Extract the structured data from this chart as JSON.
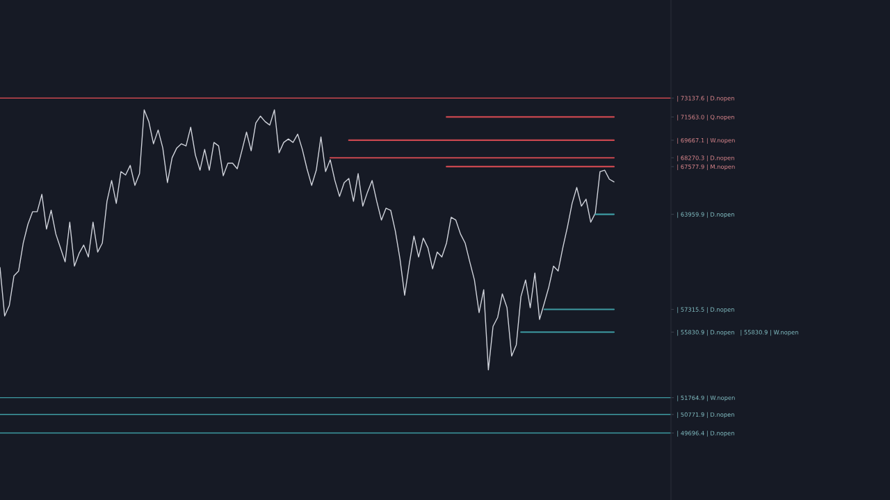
{
  "chart_data": {
    "type": "line",
    "log": "y",
    "ylim": [
      46000,
      81900
    ],
    "tick_labels": "y",
    "marker": "none",
    "line_style": "solid",
    "categories": [
      null,
      null,
      null,
      null,
      null,
      null,
      null,
      null,
      null,
      null,
      null,
      null,
      null,
      null,
      null,
      null,
      null,
      null,
      null,
      null,
      null,
      null,
      null,
      null,
      null,
      null,
      null,
      null,
      null,
      null,
      null,
      null,
      null,
      null,
      null,
      null,
      null,
      null,
      null,
      null,
      null,
      null,
      null,
      null,
      null,
      null,
      null,
      null,
      null,
      null,
      null,
      null,
      null,
      null,
      null,
      null,
      null,
      null,
      null,
      null,
      null,
      null,
      null,
      null,
      null,
      null,
      null,
      null,
      null,
      null,
      null,
      null,
      null,
      null,
      null,
      null,
      null,
      null,
      null,
      null,
      null,
      null,
      null,
      null,
      null,
      null,
      null,
      null,
      null,
      null,
      null,
      null,
      null,
      null,
      null,
      null,
      null,
      null,
      null,
      null,
      null,
      null,
      null,
      null,
      null,
      null,
      null,
      null,
      null,
      null,
      null,
      null,
      null,
      null,
      null,
      null,
      null,
      null,
      null,
      null,
      null,
      null,
      null,
      null,
      null,
      null,
      null,
      null,
      null,
      null,
      null,
      null,
      null
    ],
    "yticks": [
      {
        "value": 73137.6,
        "label": "| 73137.6 | D.nopen"
      },
      {
        "value": 71563.0,
        "label": "| 71563.0 | Q.nopen"
      },
      {
        "value": 69667.1,
        "label": "| 69667.1 | W.nopen"
      },
      {
        "value": 68270.3,
        "label": "| 68270.3 | D.nopen"
      },
      {
        "value": 67577.9,
        "label": "| 67577.9 | M.nopen"
      },
      {
        "value": 63959.9,
        "label": "| 63959.9 | D.nopen"
      },
      {
        "value": 57315.5,
        "label": "| 57315.5 | D.nopen"
      },
      {
        "value": 55830.9,
        "label": "| 55830.9 | D.nopen   | 55830.9 | W.nopen"
      },
      {
        "value": 51764.9,
        "label": "| 51764.9 | W.nopen"
      },
      {
        "value": 50771.9,
        "label": "| 50771.9 | D.nopen"
      },
      {
        "value": 49696.4,
        "label": "| 49696.4 | D.nopen"
      }
    ],
    "ref_lines": [
      {
        "axis": "y",
        "value": 73137.6,
        "color": "#c9474f"
      },
      {
        "axis": "y",
        "value": 51764.9,
        "color": "#3e9ba3"
      },
      {
        "axis": "y",
        "value": 50771.9,
        "color": "#3e9ba3"
      },
      {
        "axis": "y",
        "value": 49696.4,
        "color": "#3e9ba3"
      }
    ],
    "series": [
      {
        "color": "#d1d4dc",
        "values": [
          60155,
          56879,
          57567,
          59578,
          59914,
          61875,
          63227,
          64149,
          64149,
          65451,
          62877,
          64259,
          62526,
          61531,
          60543,
          63380,
          60251,
          61136,
          61728,
          60887,
          63380,
          61231,
          61875,
          64924,
          66504,
          64771,
          67191,
          66928,
          67674,
          66131,
          67031,
          72150,
          71178,
          69378,
          70498,
          69043,
          66343,
          68274,
          69043,
          69378,
          69210,
          70724,
          68494,
          67301,
          68932,
          67301,
          69489,
          69210,
          66870,
          67842,
          67842,
          67411,
          68823,
          70323,
          68823,
          71062,
          71630,
          71178,
          70893,
          72150,
          68661,
          69489,
          69766,
          69489,
          70160,
          68932,
          67411,
          66131,
          67301,
          69933,
          67191,
          68113,
          66504,
          65290,
          66343,
          66658,
          64924,
          67031,
          64566,
          65605,
          66504,
          64924,
          63535,
          64412,
          64259,
          62723,
          60741,
          58262,
          60397,
          62372,
          60887,
          62226,
          61531,
          60060,
          61231,
          60887,
          61875,
          63739,
          63535,
          62526,
          61875,
          60543,
          59293,
          57106,
          58635,
          53449,
          56199,
          56791,
          58350,
          57428,
          54312,
          55014,
          58167,
          59293,
          57428,
          59768,
          56653,
          57706,
          58818,
          60251,
          59914,
          61531,
          63030,
          64771,
          65970,
          64566,
          65085,
          63380,
          64046,
          67191,
          67301,
          66606,
          66395
        ]
      },
      {
        "color": "#c9474f",
        "values": [
          null,
          null,
          null,
          null,
          null,
          null,
          null,
          null,
          null,
          null,
          null,
          null,
          null,
          null,
          null,
          null,
          null,
          null,
          null,
          null,
          null,
          null,
          null,
          null,
          null,
          null,
          null,
          null,
          null,
          null,
          null,
          null,
          null,
          null,
          null,
          null,
          null,
          null,
          null,
          null,
          null,
          null,
          null,
          null,
          null,
          null,
          null,
          null,
          null,
          null,
          null,
          null,
          null,
          null,
          null,
          null,
          null,
          null,
          null,
          null,
          null,
          null,
          null,
          null,
          null,
          null,
          null,
          null,
          null,
          null,
          null,
          null,
          null,
          null,
          null,
          null,
          null,
          null,
          null,
          null,
          null,
          null,
          null,
          null,
          null,
          null,
          null,
          null,
          null,
          null,
          null,
          null,
          null,
          null,
          null,
          null,
          71563.0,
          71563.0,
          71563.0,
          71563.0,
          71563.0,
          71563.0,
          71563.0,
          71563.0,
          71563.0,
          71563.0,
          71563.0,
          71563.0,
          71563.0,
          71563.0,
          71563.0,
          71563.0,
          71563.0,
          71563.0,
          71563.0,
          71563.0,
          71563.0,
          71563.0,
          71563.0,
          71563.0,
          71563.0,
          71563.0,
          71563.0,
          71563.0,
          71563.0,
          71563.0,
          71563.0,
          71563.0,
          71563.0,
          71563.0,
          71563.0,
          71563.0,
          71563.0
        ]
      },
      {
        "color": "#c9474f",
        "values": [
          null,
          null,
          null,
          null,
          null,
          null,
          null,
          null,
          null,
          null,
          null,
          null,
          null,
          null,
          null,
          null,
          null,
          null,
          null,
          null,
          null,
          null,
          null,
          null,
          null,
          null,
          null,
          null,
          null,
          null,
          null,
          null,
          null,
          null,
          null,
          null,
          null,
          null,
          null,
          null,
          null,
          null,
          null,
          null,
          null,
          null,
          null,
          null,
          null,
          null,
          null,
          null,
          null,
          null,
          null,
          null,
          null,
          null,
          null,
          null,
          null,
          null,
          null,
          null,
          null,
          null,
          null,
          null,
          null,
          null,
          null,
          null,
          null,
          null,
          null,
          69667.1,
          69667.1,
          69667.1,
          69667.1,
          69667.1,
          69667.1,
          69667.1,
          69667.1,
          69667.1,
          69667.1,
          69667.1,
          69667.1,
          69667.1,
          69667.1,
          69667.1,
          69667.1,
          69667.1,
          69667.1,
          69667.1,
          69667.1,
          69667.1,
          69667.1,
          69667.1,
          69667.1,
          69667.1,
          69667.1,
          69667.1,
          69667.1,
          69667.1,
          69667.1,
          69667.1,
          69667.1,
          69667.1,
          69667.1,
          69667.1,
          69667.1,
          69667.1,
          69667.1,
          69667.1,
          69667.1,
          69667.1,
          69667.1,
          69667.1,
          69667.1,
          69667.1,
          69667.1,
          69667.1,
          69667.1,
          69667.1,
          69667.1,
          69667.1,
          69667.1,
          69667.1,
          69667.1,
          69667.1,
          69667.1,
          69667.1,
          69667.1
        ]
      },
      {
        "color": "#c9474f",
        "values": [
          null,
          null,
          null,
          null,
          null,
          null,
          null,
          null,
          null,
          null,
          null,
          null,
          null,
          null,
          null,
          null,
          null,
          null,
          null,
          null,
          null,
          null,
          null,
          null,
          null,
          null,
          null,
          null,
          null,
          null,
          null,
          null,
          null,
          null,
          null,
          null,
          null,
          null,
          null,
          null,
          null,
          null,
          null,
          null,
          null,
          null,
          null,
          null,
          null,
          null,
          null,
          null,
          null,
          null,
          null,
          null,
          null,
          null,
          null,
          null,
          null,
          null,
          null,
          null,
          null,
          null,
          null,
          null,
          null,
          null,
          null,
          68270.3,
          68270.3,
          68270.3,
          68270.3,
          68270.3,
          68270.3,
          68270.3,
          68270.3,
          68270.3,
          68270.3,
          68270.3,
          68270.3,
          68270.3,
          68270.3,
          68270.3,
          68270.3,
          68270.3,
          68270.3,
          68270.3,
          68270.3,
          68270.3,
          68270.3,
          68270.3,
          68270.3,
          68270.3,
          68270.3,
          68270.3,
          68270.3,
          68270.3,
          68270.3,
          68270.3,
          68270.3,
          68270.3,
          68270.3,
          68270.3,
          68270.3,
          68270.3,
          68270.3,
          68270.3,
          68270.3,
          68270.3,
          68270.3,
          68270.3,
          68270.3,
          68270.3,
          68270.3,
          68270.3,
          68270.3,
          68270.3,
          68270.3,
          68270.3,
          68270.3,
          68270.3,
          68270.3,
          68270.3,
          68270.3,
          68270.3,
          68270.3,
          68270.3,
          68270.3,
          68270.3,
          68270.3
        ]
      },
      {
        "color": "#c9474f",
        "values": [
          null,
          null,
          null,
          null,
          null,
          null,
          null,
          null,
          null,
          null,
          null,
          null,
          null,
          null,
          null,
          null,
          null,
          null,
          null,
          null,
          null,
          null,
          null,
          null,
          null,
          null,
          null,
          null,
          null,
          null,
          null,
          null,
          null,
          null,
          null,
          null,
          null,
          null,
          null,
          null,
          null,
          null,
          null,
          null,
          null,
          null,
          null,
          null,
          null,
          null,
          null,
          null,
          null,
          null,
          null,
          null,
          null,
          null,
          null,
          null,
          null,
          null,
          null,
          null,
          null,
          null,
          null,
          null,
          null,
          null,
          null,
          null,
          null,
          null,
          null,
          null,
          null,
          null,
          null,
          null,
          null,
          null,
          null,
          null,
          null,
          null,
          null,
          null,
          null,
          null,
          null,
          null,
          null,
          null,
          null,
          null,
          67577.9,
          67577.9,
          67577.9,
          67577.9,
          67577.9,
          67577.9,
          67577.9,
          67577.9,
          67577.9,
          67577.9,
          67577.9,
          67577.9,
          67577.9,
          67577.9,
          67577.9,
          67577.9,
          67577.9,
          67577.9,
          67577.9,
          67577.9,
          67577.9,
          67577.9,
          67577.9,
          67577.9,
          67577.9,
          67577.9,
          67577.9,
          67577.9,
          67577.9,
          67577.9,
          67577.9,
          67577.9,
          67577.9,
          67577.9,
          67577.9,
          67577.9,
          67577.9
        ]
      },
      {
        "color": "#3e9ba3",
        "values": [
          null,
          null,
          null,
          null,
          null,
          null,
          null,
          null,
          null,
          null,
          null,
          null,
          null,
          null,
          null,
          null,
          null,
          null,
          null,
          null,
          null,
          null,
          null,
          null,
          null,
          null,
          null,
          null,
          null,
          null,
          null,
          null,
          null,
          null,
          null,
          null,
          null,
          null,
          null,
          null,
          null,
          null,
          null,
          null,
          null,
          null,
          null,
          null,
          null,
          null,
          null,
          null,
          null,
          null,
          null,
          null,
          null,
          null,
          null,
          null,
          null,
          null,
          null,
          null,
          null,
          null,
          null,
          null,
          null,
          null,
          null,
          null,
          null,
          null,
          null,
          null,
          null,
          null,
          null,
          null,
          null,
          null,
          null,
          null,
          null,
          null,
          null,
          null,
          null,
          null,
          null,
          null,
          null,
          null,
          null,
          null,
          null,
          null,
          null,
          null,
          null,
          null,
          null,
          null,
          null,
          null,
          null,
          null,
          null,
          null,
          null,
          null,
          null,
          null,
          null,
          null,
          null,
          null,
          null,
          null,
          null,
          null,
          null,
          null,
          null,
          null,
          null,
          null,
          63959.9,
          63959.9,
          63959.9,
          63959.9,
          63959.9
        ]
      },
      {
        "color": "#3e9ba3",
        "values": [
          null,
          null,
          null,
          null,
          null,
          null,
          null,
          null,
          null,
          null,
          null,
          null,
          null,
          null,
          null,
          null,
          null,
          null,
          null,
          null,
          null,
          null,
          null,
          null,
          null,
          null,
          null,
          null,
          null,
          null,
          null,
          null,
          null,
          null,
          null,
          null,
          null,
          null,
          null,
          null,
          null,
          null,
          null,
          null,
          null,
          null,
          null,
          null,
          null,
          null,
          null,
          null,
          null,
          null,
          null,
          null,
          null,
          null,
          null,
          null,
          null,
          null,
          null,
          null,
          null,
          null,
          null,
          null,
          null,
          null,
          null,
          null,
          null,
          null,
          null,
          null,
          null,
          null,
          null,
          null,
          null,
          null,
          null,
          null,
          null,
          null,
          null,
          null,
          null,
          null,
          null,
          null,
          null,
          null,
          null,
          null,
          null,
          null,
          null,
          null,
          null,
          null,
          null,
          null,
          null,
          null,
          null,
          null,
          null,
          null,
          null,
          null,
          null,
          null,
          null,
          null,
          null,
          57315.5,
          57315.5,
          57315.5,
          57315.5,
          57315.5,
          57315.5,
          57315.5,
          57315.5,
          57315.5,
          57315.5,
          57315.5,
          57315.5,
          57315.5,
          57315.5,
          57315.5,
          57315.5
        ]
      },
      {
        "color": "#3e9ba3",
        "values": [
          null,
          null,
          null,
          null,
          null,
          null,
          null,
          null,
          null,
          null,
          null,
          null,
          null,
          null,
          null,
          null,
          null,
          null,
          null,
          null,
          null,
          null,
          null,
          null,
          null,
          null,
          null,
          null,
          null,
          null,
          null,
          null,
          null,
          null,
          null,
          null,
          null,
          null,
          null,
          null,
          null,
          null,
          null,
          null,
          null,
          null,
          null,
          null,
          null,
          null,
          null,
          null,
          null,
          null,
          null,
          null,
          null,
          null,
          null,
          null,
          null,
          null,
          null,
          null,
          null,
          null,
          null,
          null,
          null,
          null,
          null,
          null,
          null,
          null,
          null,
          null,
          null,
          null,
          null,
          null,
          null,
          null,
          null,
          null,
          null,
          null,
          null,
          null,
          null,
          null,
          null,
          null,
          null,
          null,
          null,
          null,
          null,
          null,
          null,
          null,
          null,
          null,
          null,
          null,
          null,
          null,
          null,
          null,
          null,
          null,
          null,
          null,
          55830.9,
          55830.9,
          55830.9,
          55830.9,
          55830.9,
          55830.9,
          55830.9,
          55830.9,
          55830.9,
          55830.9,
          55830.9,
          55830.9,
          55830.9,
          55830.9,
          55830.9,
          55830.9,
          55830.9,
          55830.9,
          55830.9,
          55830.9,
          55830.9
        ]
      }
    ]
  }
}
